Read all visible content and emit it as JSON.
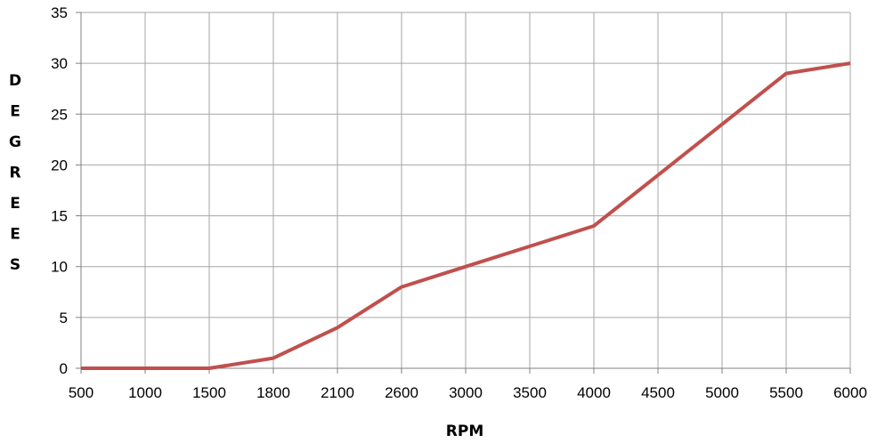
{
  "chart_data": {
    "type": "line",
    "title": "",
    "xlabel": "RPM",
    "ylabel": "DEGREES",
    "categories": [
      "500",
      "1000",
      "1500",
      "1800",
      "2100",
      "2600",
      "3000",
      "3500",
      "4000",
      "4500",
      "5000",
      "5500",
      "6000"
    ],
    "series": [
      {
        "values": [
          0,
          0,
          0,
          1,
          4,
          8,
          10,
          12,
          14,
          19,
          24,
          29,
          30
        ]
      }
    ],
    "ylim": [
      0,
      35
    ],
    "yticks": [
      "0",
      "5",
      "10",
      "15",
      "20",
      "25",
      "30",
      "35"
    ],
    "grid": true,
    "legend": "none",
    "line_color": "#c0504d",
    "grid_color": "#a6a6a6"
  }
}
